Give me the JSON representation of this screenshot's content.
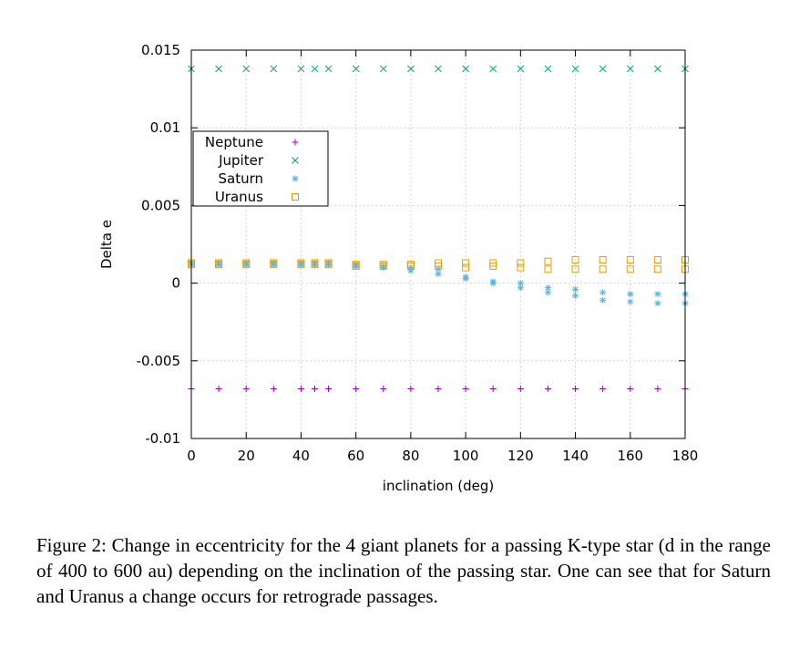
{
  "caption": "Figure 2: Change in eccentricity for the 4 giant planets for a passing K-type star (d in the range of 400 to 600 au) depending on the inclination of the passing star. One can see that for Saturn and Uranus a change occurs for retrograde passages.",
  "chart_data": {
    "type": "scatter",
    "title": "",
    "xlabel": "inclination (deg)",
    "ylabel": "Delta e",
    "xlim": [
      0,
      180
    ],
    "ylim": [
      -0.01,
      0.015
    ],
    "xticks": [
      0,
      20,
      40,
      60,
      80,
      100,
      120,
      140,
      160,
      180
    ],
    "xtick_labels": [
      "0",
      "20",
      "40",
      "60",
      "80",
      "100",
      "120",
      "140",
      "160",
      "180"
    ],
    "yticks": [
      -0.01,
      -0.005,
      0,
      0.005,
      0.01,
      0.015
    ],
    "ytick_labels": [
      "-0.01",
      "-0.005",
      "0",
      "0.005",
      "0.01",
      "0.015"
    ],
    "grid": true,
    "legend_position": "upper-left",
    "series": [
      {
        "name": "Neptune",
        "marker": "plus",
        "color": "#9400d3",
        "points": [
          [
            0,
            -0.0068
          ],
          [
            10,
            -0.0068
          ],
          [
            20,
            -0.0068
          ],
          [
            30,
            -0.0068
          ],
          [
            40,
            -0.0068
          ],
          [
            45,
            -0.0068
          ],
          [
            50,
            -0.0068
          ],
          [
            60,
            -0.0068
          ],
          [
            70,
            -0.0068
          ],
          [
            80,
            -0.0068
          ],
          [
            90,
            -0.0068
          ],
          [
            100,
            -0.0068
          ],
          [
            110,
            -0.0068
          ],
          [
            120,
            -0.0068
          ],
          [
            130,
            -0.0068
          ],
          [
            140,
            -0.0068
          ],
          [
            150,
            -0.0068
          ],
          [
            160,
            -0.0068
          ],
          [
            170,
            -0.0068
          ],
          [
            180,
            -0.0068
          ]
        ]
      },
      {
        "name": "Jupiter",
        "marker": "cross",
        "color": "#009e73",
        "points": [
          [
            0,
            0.0138
          ],
          [
            10,
            0.0138
          ],
          [
            20,
            0.0138
          ],
          [
            30,
            0.0138
          ],
          [
            40,
            0.0138
          ],
          [
            45,
            0.0138
          ],
          [
            50,
            0.0138
          ],
          [
            60,
            0.0138
          ],
          [
            70,
            0.0138
          ],
          [
            80,
            0.0138
          ],
          [
            90,
            0.0138
          ],
          [
            100,
            0.0138
          ],
          [
            110,
            0.0138
          ],
          [
            120,
            0.0138
          ],
          [
            130,
            0.0138
          ],
          [
            140,
            0.0138
          ],
          [
            150,
            0.0138
          ],
          [
            160,
            0.0138
          ],
          [
            170,
            0.0138
          ],
          [
            180,
            0.0138
          ]
        ]
      },
      {
        "name": "Saturn",
        "marker": "star",
        "color": "#56b4e9",
        "points": [
          [
            0,
            0.0012
          ],
          [
            0,
            0.0013
          ],
          [
            10,
            0.0012
          ],
          [
            10,
            0.0013
          ],
          [
            20,
            0.0012
          ],
          [
            20,
            0.0013
          ],
          [
            30,
            0.0012
          ],
          [
            30,
            0.0013
          ],
          [
            40,
            0.0012
          ],
          [
            40,
            0.0013
          ],
          [
            45,
            0.0012
          ],
          [
            45,
            0.0013
          ],
          [
            50,
            0.0012
          ],
          [
            50,
            0.0013
          ],
          [
            60,
            0.0011
          ],
          [
            60,
            0.0012
          ],
          [
            70,
            0.001
          ],
          [
            70,
            0.0011
          ],
          [
            80,
            0.0008
          ],
          [
            80,
            0.001
          ],
          [
            90,
            0.0006
          ],
          [
            90,
            0.0009
          ],
          [
            100,
            0.0003
          ],
          [
            100,
            0.0004
          ],
          [
            110,
            0
          ],
          [
            110,
            0.0001
          ],
          [
            120,
            -0.0003
          ],
          [
            120,
            0
          ],
          [
            130,
            -0.0006
          ],
          [
            130,
            -0.0003
          ],
          [
            140,
            -0.0008
          ],
          [
            140,
            -0.0004
          ],
          [
            150,
            -0.0011
          ],
          [
            150,
            -0.0006
          ],
          [
            160,
            -0.0012
          ],
          [
            160,
            -0.0007
          ],
          [
            170,
            -0.0013
          ],
          [
            170,
            -0.0007
          ],
          [
            180,
            -0.0013
          ],
          [
            180,
            -0.0007
          ]
        ]
      },
      {
        "name": "Uranus",
        "marker": "square",
        "color": "#e69f00",
        "points": [
          [
            0,
            0.0012
          ],
          [
            0,
            0.0013
          ],
          [
            10,
            0.0012
          ],
          [
            10,
            0.0013
          ],
          [
            20,
            0.0012
          ],
          [
            20,
            0.0013
          ],
          [
            30,
            0.0012
          ],
          [
            30,
            0.0013
          ],
          [
            40,
            0.0012
          ],
          [
            40,
            0.0013
          ],
          [
            45,
            0.0012
          ],
          [
            45,
            0.0013
          ],
          [
            50,
            0.0012
          ],
          [
            50,
            0.0013
          ],
          [
            60,
            0.0011
          ],
          [
            60,
            0.0012
          ],
          [
            70,
            0.0011
          ],
          [
            70,
            0.0012
          ],
          [
            80,
            0.0011
          ],
          [
            80,
            0.0012
          ],
          [
            90,
            0.0011
          ],
          [
            90,
            0.0013
          ],
          [
            100,
            0.001
          ],
          [
            100,
            0.0013
          ],
          [
            110,
            0.0011
          ],
          [
            110,
            0.0013
          ],
          [
            120,
            0.001
          ],
          [
            120,
            0.0013
          ],
          [
            130,
            0.0009
          ],
          [
            130,
            0.0014
          ],
          [
            140,
            0.0009
          ],
          [
            140,
            0.0015
          ],
          [
            150,
            0.0009
          ],
          [
            150,
            0.0015
          ],
          [
            160,
            0.0009
          ],
          [
            160,
            0.0015
          ],
          [
            170,
            0.0009
          ],
          [
            170,
            0.0015
          ],
          [
            180,
            0.0009
          ],
          [
            180,
            0.0015
          ]
        ]
      }
    ]
  }
}
